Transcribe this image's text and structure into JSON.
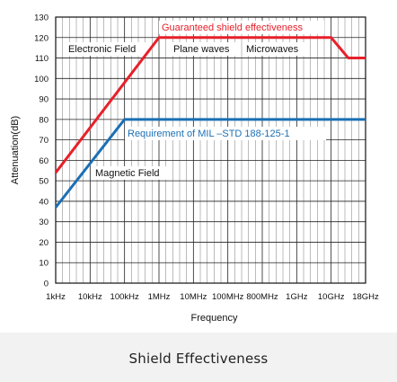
{
  "chart_data": {
    "type": "line",
    "xlabel": "Frequency",
    "ylabel": "Attenuation(dB)",
    "categories": [
      "1kHz",
      "10kHz",
      "100kHz",
      "1MHz",
      "10MHz",
      "100MHz",
      "800MHz",
      "1GHz",
      "10GHz",
      "18GHz"
    ],
    "ylim": [
      0,
      130
    ],
    "yticks": [
      0,
      10,
      20,
      30,
      40,
      50,
      60,
      70,
      80,
      90,
      100,
      110,
      120,
      130
    ],
    "grid": true,
    "series": [
      {
        "name": "Guaranteed shield effectiveness",
        "color": "#e8202a",
        "points": [
          [
            0,
            54
          ],
          [
            3,
            120
          ],
          [
            8,
            120
          ],
          [
            8.5,
            110
          ],
          [
            9,
            110
          ]
        ]
      },
      {
        "name": "Requirement of MIL –STD 188-125-1",
        "color": "#1a6fb5",
        "points": [
          [
            0,
            37
          ],
          [
            2,
            80
          ],
          [
            9,
            80
          ]
        ]
      }
    ],
    "annotations": [
      "Electronic Field",
      "Plane waves",
      "Microwaves",
      "Magnetic Field"
    ]
  },
  "caption": "Shield Effectiveness"
}
